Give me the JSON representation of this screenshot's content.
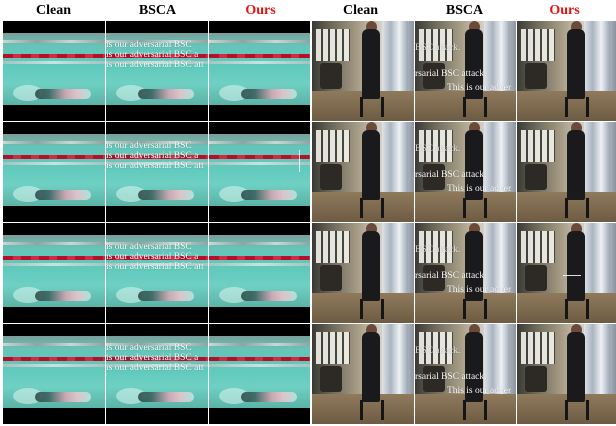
{
  "headers": [
    {
      "label": "Clean",
      "color": "#000000"
    },
    {
      "label": "BSCA",
      "color": "#000000"
    },
    {
      "label": "Ours",
      "color": "#e8130f"
    },
    {
      "label": "Clean",
      "color": "#000000"
    },
    {
      "label": "BSCA",
      "color": "#000000"
    },
    {
      "label": "Ours",
      "color": "#e8130f"
    }
  ],
  "overlays": {
    "swim_bsca": [
      "is our adversarial BSC",
      "is our adversarial BSC a",
      "is our adversarial BSC att"
    ],
    "room_bsca_top": "BSC attack.",
    "room_bsca_mid": "rsarial BSC attack.",
    "room_bsca_bottom": "This is our adver",
    "room_ours": "This is our adver"
  }
}
